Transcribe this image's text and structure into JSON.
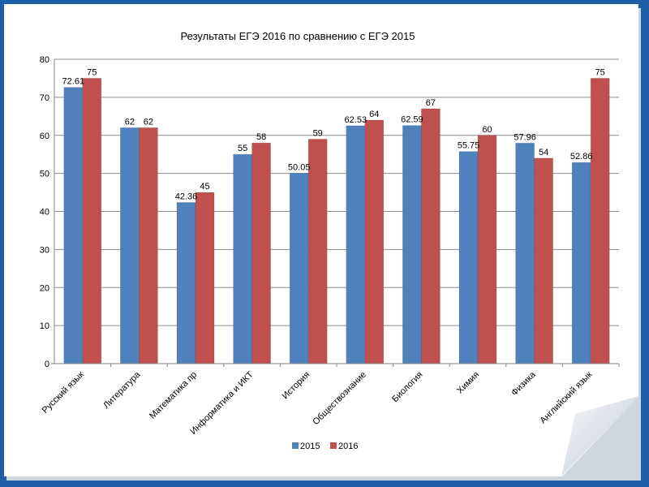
{
  "chart_data": {
    "type": "bar",
    "title": "Результаты ЕГЭ 2016 по сравнению с ЕГЭ 2015",
    "categories": [
      "Русский язык",
      "Литература",
      "Математика пр",
      "Информатика и ИКТ",
      "История",
      "Обществознание",
      "Биология",
      "Химия",
      "Физика",
      "Английский язык"
    ],
    "series": [
      {
        "name": "2015",
        "color": "#4f81bd",
        "values": [
          72.61,
          62,
          42.36,
          55,
          50.05,
          62.53,
          62.59,
          55.75,
          57.96,
          52.86
        ],
        "labels": [
          "72.61",
          "62",
          "42.36",
          "55",
          "50.05",
          "62.53",
          "62.59",
          "55.75",
          "57.96",
          "52.86"
        ]
      },
      {
        "name": "2016",
        "color": "#c0504d",
        "values": [
          75,
          62,
          45,
          58,
          59,
          64,
          67,
          60,
          54,
          75
        ],
        "labels": [
          "75",
          "62",
          "45",
          "58",
          "59",
          "64",
          "67",
          "60",
          "54",
          "75"
        ]
      }
    ],
    "ylim": [
      0,
      80
    ],
    "yticks": [
      "0",
      "10",
      "20",
      "30",
      "40",
      "50",
      "60",
      "70",
      "80"
    ],
    "grid": true,
    "legend": "bottom",
    "xlabel": "",
    "ylabel": ""
  },
  "colors": {
    "background": "#1f5fa8",
    "paper": "#ffffff",
    "gridline": "#8c8c8c",
    "axis": "#868686",
    "text": "#000000"
  }
}
